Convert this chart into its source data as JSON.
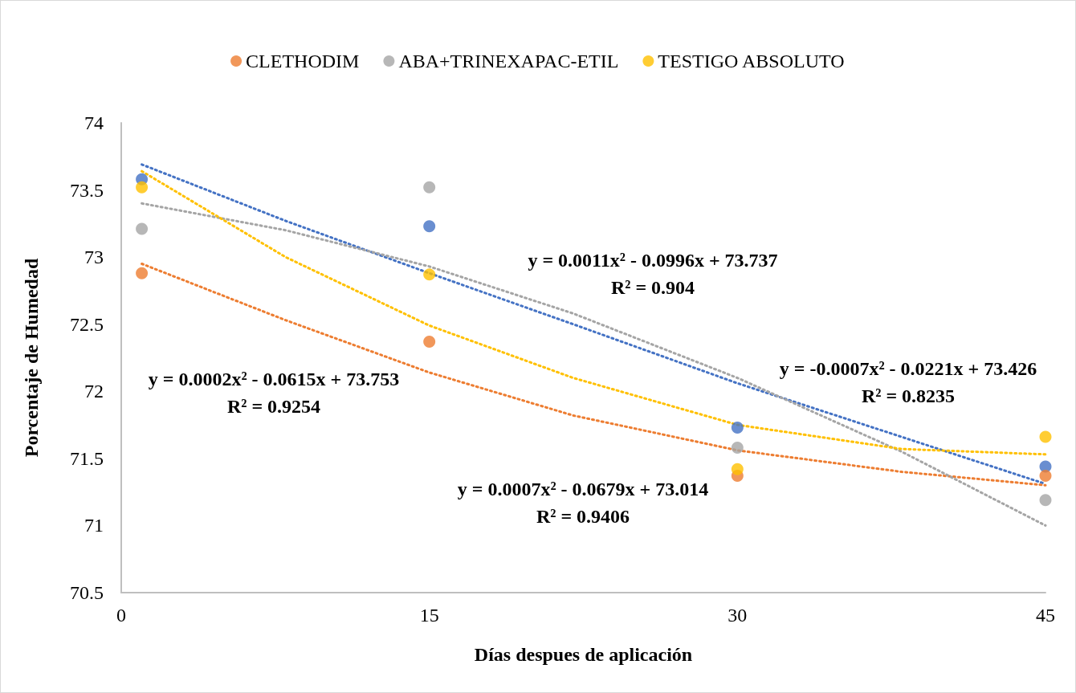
{
  "chart_data": {
    "type": "scatter",
    "xlabel": "Días despues de aplicación",
    "ylabel": "Porcentaje de Humedad",
    "x": [
      1,
      15,
      30,
      45
    ],
    "series": [
      {
        "color": "#4472c4",
        "values": [
          73.58,
          73.23,
          71.73,
          71.44
        ]
      },
      {
        "name": "CLETHODIM",
        "color": "#ed7d31",
        "values": [
          72.88,
          72.37,
          71.37,
          71.37
        ]
      },
      {
        "name": "ABA+TRINEXAPAC-ETIL",
        "color": "#a5a5a5",
        "values": [
          73.21,
          73.52,
          71.58,
          71.19
        ]
      },
      {
        "name": "TESTIGO ABSOLUTO",
        "color": "#ffc000",
        "values": [
          73.52,
          72.87,
          71.42,
          71.66
        ]
      },
      {
        "type": "line",
        "color": "#4472c4",
        "line_style": "dotted",
        "marker": "none",
        "x": [
          1,
          8,
          15,
          22,
          30,
          38,
          45
        ],
        "values": [
          73.69,
          73.27,
          72.88,
          72.5,
          72.06,
          71.66,
          71.31
        ]
      },
      {
        "type": "line",
        "color": "#ed7d31",
        "line_style": "dotted",
        "marker": "none",
        "x": [
          1,
          8,
          15,
          22,
          30,
          38,
          45
        ],
        "values": [
          72.95,
          72.53,
          72.14,
          71.82,
          71.56,
          71.4,
          71.3
        ]
      },
      {
        "type": "line",
        "color": "#a5a5a5",
        "line_style": "dotted",
        "marker": "none",
        "x": [
          1,
          8,
          15,
          22,
          30,
          38,
          45
        ],
        "values": [
          73.4,
          73.2,
          72.93,
          72.58,
          72.1,
          71.55,
          71.0
        ]
      },
      {
        "type": "line",
        "color": "#ffc000",
        "line_style": "dotted",
        "marker": "none",
        "x": [
          1,
          8,
          15,
          22,
          30,
          38,
          45
        ],
        "values": [
          73.64,
          73.0,
          72.49,
          72.1,
          71.75,
          71.57,
          71.53
        ]
      }
    ],
    "xlim": [
      0,
      45
    ],
    "xticks": [
      0,
      15,
      30,
      45
    ],
    "ylim": [
      70.5,
      74
    ],
    "yticks": [
      70.5,
      71,
      71.5,
      72,
      72.5,
      73,
      73.5,
      74
    ],
    "marker": "circle",
    "grid": false,
    "legend": "top",
    "annotations": [
      "y = 0.0002x² - 0.0615x + 73.753\nR² = 0.9254",
      "y = 0.0011x² - 0.0996x + 73.737\nR² = 0.904",
      "y = -0.0007x² - 0.0221x + 73.426\nR² = 0.8235",
      "y = 0.0007x² - 0.0679x + 73.014\nR² = 0.9406"
    ]
  }
}
